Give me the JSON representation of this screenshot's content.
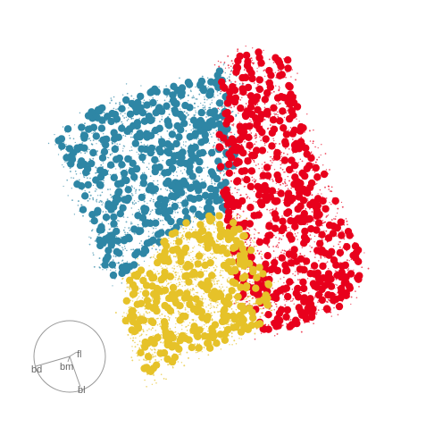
{
  "chart_data": {
    "type": "scatter",
    "title": "",
    "xlabel": "",
    "ylabel": "",
    "grid": false,
    "legend": "none",
    "series": [
      {
        "color": "#2e86a5",
        "region": "top-left",
        "approx_points": 420
      },
      {
        "color": "#e8001c",
        "region": "right",
        "approx_points": 480
      },
      {
        "color": "#e6c229",
        "region": "bottom",
        "approx_points": 320
      }
    ],
    "background_points": {
      "colors": [
        "#2e86a5",
        "#e8001c",
        "#e6c229"
      ],
      "style": "small dots"
    },
    "compass": {
      "labels": [
        "fl",
        "bm",
        "bd",
        "bl"
      ]
    }
  }
}
